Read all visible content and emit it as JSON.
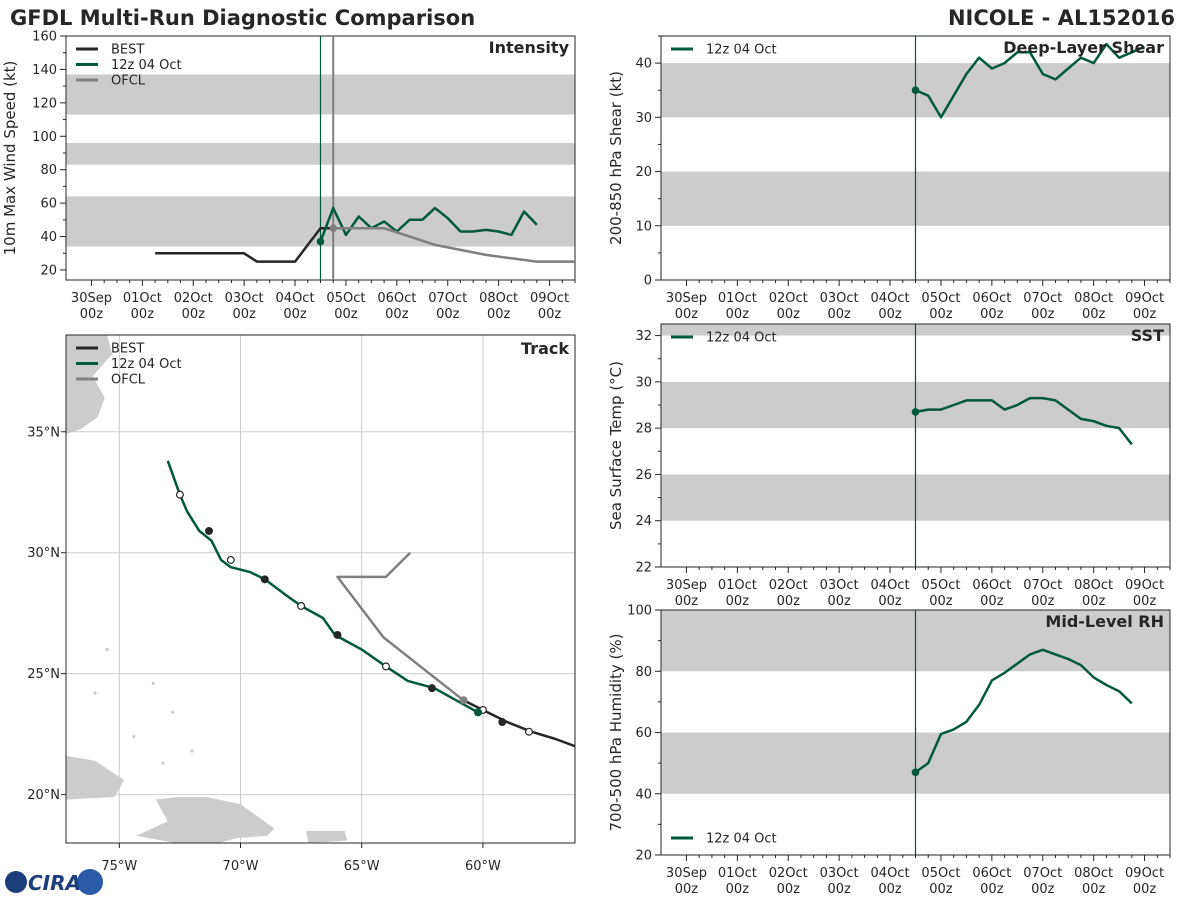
{
  "header": {
    "title_left": "GFDL Multi-Run Diagnostic Comparison",
    "title_right": "NICOLE - AL152016"
  },
  "logo": {
    "text": "CIRA"
  },
  "colors": {
    "best": "#262626",
    "run": "#00593a",
    "ofcl": "#7f7f7f",
    "band": "#cccccc",
    "grid": "#cccccc",
    "land": "#cccccc"
  },
  "time_axis": {
    "range_hours": [
      -12,
      228
    ],
    "ticks": [
      {
        "h": 0,
        "l1": "30Sep",
        "l2": "00z"
      },
      {
        "h": 24,
        "l1": "01Oct",
        "l2": "00z"
      },
      {
        "h": 48,
        "l1": "02Oct",
        "l2": "00z"
      },
      {
        "h": 72,
        "l1": "03Oct",
        "l2": "00z"
      },
      {
        "h": 96,
        "l1": "04Oct",
        "l2": "00z"
      },
      {
        "h": 120,
        "l1": "05Oct",
        "l2": "00z"
      },
      {
        "h": 144,
        "l1": "06Oct",
        "l2": "00z"
      },
      {
        "h": 168,
        "l1": "07Oct",
        "l2": "00z"
      },
      {
        "h": 192,
        "l1": "08Oct",
        "l2": "00z"
      },
      {
        "h": 216,
        "l1": "09Oct",
        "l2": "00z"
      }
    ],
    "init_hour": 108
  },
  "chart_data": [
    {
      "id": "intensity",
      "type": "line",
      "title": "Intensity",
      "ylabel": "10m Max Wind Speed (kt)",
      "ylim": [
        14,
        160
      ],
      "yticks": [
        20,
        40,
        60,
        80,
        100,
        120,
        140,
        160
      ],
      "bands": [
        [
          34,
          64
        ],
        [
          83,
          96
        ],
        [
          113,
          137
        ]
      ],
      "legend": [
        "BEST",
        "12z 04 Oct",
        "OFCL"
      ],
      "ofcl_init_hour": 114,
      "series": [
        {
          "name": "BEST",
          "x": [
            30,
            42,
            54,
            66,
            72,
            78,
            84,
            90,
            96,
            102,
            108,
            114
          ],
          "y": [
            30,
            30,
            30,
            30,
            30,
            25,
            25,
            25,
            25,
            35,
            45,
            45
          ]
        },
        {
          "name": "12z 04 Oct",
          "x": [
            108,
            114,
            120,
            126,
            132,
            138,
            144,
            150,
            156,
            162,
            168,
            174,
            180,
            186,
            192,
            198,
            204,
            210
          ],
          "y": [
            37,
            57,
            41,
            52,
            45,
            49,
            43,
            50,
            50,
            57,
            51,
            43,
            43,
            44,
            43,
            41,
            55,
            47
          ]
        },
        {
          "name": "OFCL",
          "x": [
            114,
            126,
            138,
            150,
            162,
            174,
            186,
            198,
            210,
            222,
            228
          ],
          "y": [
            45,
            45,
            45,
            40,
            35,
            32,
            29,
            27,
            25,
            25,
            25
          ]
        }
      ]
    },
    {
      "id": "shear",
      "type": "line",
      "title": "Deep-Layer Shear",
      "ylabel": "200-850 hPa Shear (kt)",
      "ylim": [
        0,
        45
      ],
      "yticks": [
        0,
        10,
        20,
        30,
        40
      ],
      "bands": [
        [
          10,
          20
        ],
        [
          30,
          40
        ]
      ],
      "legend": [
        "12z 04 Oct"
      ],
      "series": [
        {
          "name": "12z 04 Oct",
          "x": [
            108,
            114,
            120,
            126,
            132,
            138,
            144,
            150,
            156,
            162,
            168,
            174,
            180,
            186,
            192,
            198,
            204,
            210,
            216
          ],
          "y": [
            35,
            34,
            30,
            34,
            38,
            41,
            39,
            40,
            42,
            42,
            38,
            37,
            39,
            41,
            40,
            43.5,
            41,
            42,
            43
          ]
        }
      ]
    },
    {
      "id": "sst",
      "type": "line",
      "title": "SST",
      "ylabel": "Sea Surface Temp (°C)",
      "ylim": [
        22,
        32.5
      ],
      "yticks": [
        22,
        24,
        26,
        28,
        30,
        32
      ],
      "bands": [
        [
          24,
          26
        ],
        [
          28,
          30
        ],
        [
          32,
          34
        ]
      ],
      "legend": [
        "12z 04 Oct"
      ],
      "series": [
        {
          "name": "12z 04 Oct",
          "x": [
            108,
            114,
            120,
            126,
            132,
            138,
            144,
            150,
            156,
            162,
            168,
            174,
            180,
            186,
            192,
            198,
            204,
            210
          ],
          "y": [
            28.7,
            28.8,
            28.8,
            29.0,
            29.2,
            29.2,
            29.2,
            28.8,
            29.0,
            29.3,
            29.3,
            29.2,
            28.8,
            28.4,
            28.3,
            28.1,
            28.0,
            27.3
          ]
        }
      ]
    },
    {
      "id": "rh",
      "type": "line",
      "title": "Mid-Level RH",
      "ylabel": "700-500 hPa Humidity (%)",
      "ylim": [
        20,
        100
      ],
      "yticks": [
        20,
        40,
        60,
        80,
        100
      ],
      "bands": [
        [
          40,
          60
        ],
        [
          80,
          100
        ]
      ],
      "legend": [
        "12z 04 Oct"
      ],
      "series": [
        {
          "name": "12z 04 Oct",
          "x": [
            108,
            114,
            120,
            126,
            132,
            138,
            144,
            150,
            156,
            162,
            168,
            174,
            180,
            186,
            192,
            198,
            204,
            210
          ],
          "y": [
            47,
            50,
            59.5,
            61,
            63.5,
            69,
            77,
            79.5,
            82.5,
            85.5,
            87,
            85.5,
            84,
            82,
            78,
            75.5,
            73.5,
            69.5
          ]
        }
      ]
    },
    {
      "id": "track",
      "type": "line",
      "title": "Track",
      "xlabel": "Longitude",
      "ylabel": "Latitude",
      "xlim": [
        -77.2,
        -56.2
      ],
      "ylim": [
        18,
        39
      ],
      "xticks": [
        -75,
        -70,
        -65,
        -60
      ],
      "xticklabels": [
        "75°W",
        "70°W",
        "65°W",
        "60°W"
      ],
      "yticks": [
        20,
        25,
        30,
        35
      ],
      "yticklabels": [
        "20°N",
        "25°N",
        "30°N",
        "35°N"
      ],
      "legend": [
        "BEST",
        "12z 04 Oct",
        "OFCL"
      ],
      "series": [
        {
          "name": "BEST",
          "lon": [
            -56.2,
            -57.0,
            -58.0,
            -59.0,
            -60.0,
            -60.8
          ],
          "lat": [
            22.0,
            22.3,
            22.6,
            23.0,
            23.5,
            23.9
          ],
          "markers": [
            {
              "lon": -58.1,
              "lat": 22.6,
              "filled": false
            },
            {
              "lon": -59.2,
              "lat": 23.0,
              "filled": true
            },
            {
              "lon": -60.0,
              "lat": 23.5,
              "filled": false
            }
          ]
        },
        {
          "name": "12z 04 Oct",
          "lon": [
            -73.0,
            -72.5,
            -72.2,
            -71.7,
            -71.2,
            -70.8,
            -70.4,
            -69.6,
            -69.0,
            -68.2,
            -67.5,
            -66.6,
            -66.1,
            -65.0,
            -64.0,
            -63.1,
            -62.0,
            -61.1,
            -60.2
          ],
          "lat": [
            33.8,
            32.4,
            31.7,
            30.9,
            30.5,
            29.7,
            29.4,
            29.2,
            28.9,
            28.3,
            27.8,
            27.3,
            26.6,
            26.0,
            25.3,
            24.7,
            24.4,
            23.9,
            23.4
          ],
          "markers": [
            {
              "lon": -72.5,
              "lat": 32.4,
              "filled": false
            },
            {
              "lon": -71.3,
              "lat": 30.9,
              "filled": true
            },
            {
              "lon": -70.4,
              "lat": 29.7,
              "filled": false
            },
            {
              "lon": -69.0,
              "lat": 28.9,
              "filled": true
            },
            {
              "lon": -67.5,
              "lat": 27.8,
              "filled": false
            },
            {
              "lon": -66.0,
              "lat": 26.6,
              "filled": true
            },
            {
              "lon": -64.0,
              "lat": 25.3,
              "filled": false
            },
            {
              "lon": -62.1,
              "lat": 24.4,
              "filled": true
            },
            {
              "lon": -60.2,
              "lat": 23.4,
              "filled": true,
              "accent": true
            }
          ]
        },
        {
          "name": "OFCL",
          "lon": [
            -60.8,
            -62.2,
            -64.1,
            -66.0,
            -64.0,
            -63.0
          ],
          "lat": [
            23.9,
            25.0,
            26.5,
            29.0,
            29.0,
            30.0
          ],
          "markers": [
            {
              "lon": -60.8,
              "lat": 23.9,
              "filled": true
            }
          ]
        }
      ]
    }
  ]
}
